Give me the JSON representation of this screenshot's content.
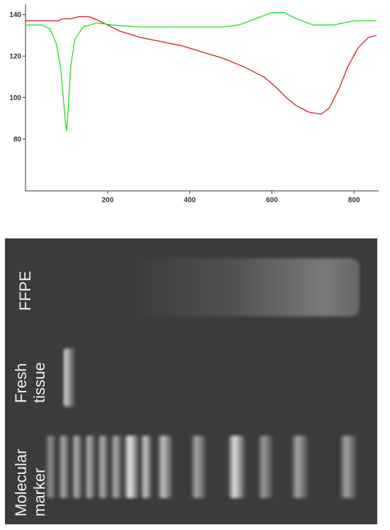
{
  "chart_data": {
    "type": "line",
    "title": "",
    "xlabel": "",
    "ylabel": "",
    "xlim": [
      0,
      860
    ],
    "ylim": [
      55,
      145
    ],
    "x_ticks": [
      200,
      400,
      600,
      800
    ],
    "y_ticks": [
      80,
      100,
      120,
      140
    ],
    "grid": false,
    "series": [
      {
        "color": "#cc1f1f",
        "points": [
          [
            0,
            137
          ],
          [
            80,
            137
          ],
          [
            90,
            138
          ],
          [
            110,
            138
          ],
          [
            130,
            139
          ],
          [
            155,
            139
          ],
          [
            180,
            137
          ],
          [
            200,
            135
          ],
          [
            230,
            132
          ],
          [
            280,
            129
          ],
          [
            330,
            127
          ],
          [
            380,
            125
          ],
          [
            430,
            122
          ],
          [
            480,
            119
          ],
          [
            530,
            115
          ],
          [
            580,
            110
          ],
          [
            610,
            105
          ],
          [
            635,
            100
          ],
          [
            660,
            96
          ],
          [
            690,
            93
          ],
          [
            720,
            92
          ],
          [
            740,
            95
          ],
          [
            765,
            105
          ],
          [
            785,
            115
          ],
          [
            810,
            124
          ],
          [
            835,
            129
          ],
          [
            855,
            130
          ]
        ]
      },
      {
        "color": "#22dd22",
        "points": [
          [
            0,
            135
          ],
          [
            40,
            135
          ],
          [
            60,
            133
          ],
          [
            75,
            126
          ],
          [
            85,
            115
          ],
          [
            92,
            100
          ],
          [
            97,
            88
          ],
          [
            100,
            84
          ],
          [
            104,
            95
          ],
          [
            110,
            115
          ],
          [
            120,
            128
          ],
          [
            140,
            134
          ],
          [
            175,
            136
          ],
          [
            210,
            135
          ],
          [
            280,
            134
          ],
          [
            340,
            134
          ],
          [
            480,
            134
          ],
          [
            520,
            135
          ],
          [
            560,
            138
          ],
          [
            600,
            141
          ],
          [
            630,
            141
          ],
          [
            660,
            138
          ],
          [
            700,
            135
          ],
          [
            750,
            135
          ],
          [
            800,
            137
          ],
          [
            855,
            137
          ]
        ]
      }
    ]
  },
  "gel": {
    "lane_labels": [
      {
        "lines": [
          "FFPE"
        ]
      },
      {
        "lines": [
          "Fresh",
          "tissue"
        ]
      },
      {
        "lines": [
          "Molecular",
          "marker"
        ]
      }
    ],
    "marker_bands": [
      {
        "x": 0.11,
        "w": 0.028,
        "i": 0.45
      },
      {
        "x": 0.145,
        "w": 0.028,
        "i": 0.6
      },
      {
        "x": 0.18,
        "w": 0.028,
        "i": 0.62
      },
      {
        "x": 0.215,
        "w": 0.028,
        "i": 0.62
      },
      {
        "x": 0.25,
        "w": 0.028,
        "i": 0.62
      },
      {
        "x": 0.285,
        "w": 0.03,
        "i": 0.6
      },
      {
        "x": 0.32,
        "w": 0.04,
        "i": 0.9
      },
      {
        "x": 0.365,
        "w": 0.03,
        "i": 0.75
      },
      {
        "x": 0.41,
        "w": 0.04,
        "i": 0.7
      },
      {
        "x": 0.5,
        "w": 0.04,
        "i": 0.55
      },
      {
        "x": 0.6,
        "w": 0.045,
        "i": 0.85
      },
      {
        "x": 0.68,
        "w": 0.04,
        "i": 0.5
      },
      {
        "x": 0.77,
        "w": 0.045,
        "i": 0.55
      },
      {
        "x": 0.9,
        "w": 0.045,
        "i": 0.55
      }
    ]
  }
}
